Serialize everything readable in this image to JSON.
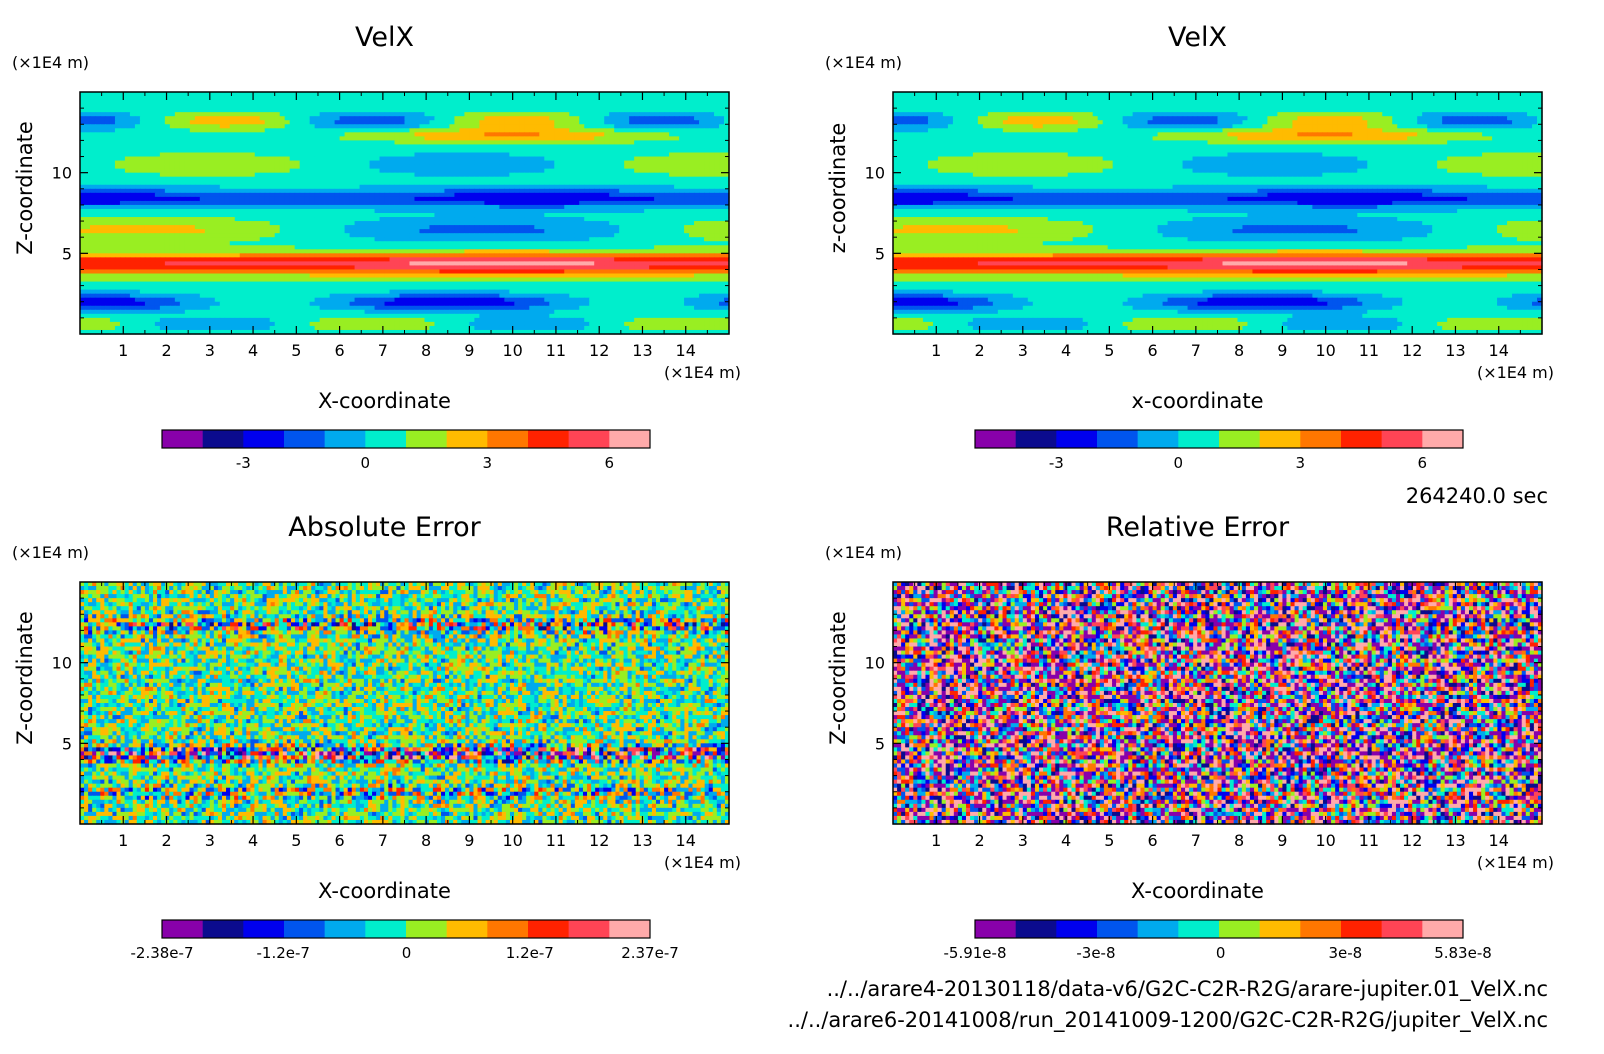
{
  "time_label": "264240.0 sec",
  "file_paths": [
    "../../arare4-20130118/data-v6/G2C-C2R-R2G/arare-jupiter.01_VelX.nc",
    "../../arare6-20141008/run_20141009-1200/G2C-C2R-R2G/jupiter_VelX.nc"
  ],
  "colormap": [
    "#8800aa",
    "#0b0b8e",
    "#0000ee",
    "#0055ee",
    "#00aaee",
    "#00eecc",
    "#99ee22",
    "#ffbb00",
    "#ff7700",
    "#ff2200",
    "#ff4455",
    "#ffaaaa"
  ],
  "chart_data": [
    {
      "type": "heatmap",
      "title": "VelX",
      "xlabel": "X-coordinate",
      "ylabel": "Z-coordinate",
      "x_unit": "(×1E4 m)",
      "y_unit": "(×1E4 m)",
      "xlim": [
        0,
        15
      ],
      "ylim": [
        0,
        15
      ],
      "x_ticks": [
        1,
        2,
        3,
        4,
        5,
        6,
        7,
        8,
        9,
        10,
        11,
        12,
        13,
        14
      ],
      "y_ticks": [
        5,
        10
      ],
      "field": "smooth",
      "colorbar": {
        "min": -5,
        "max": 7,
        "tick_values": [
          -3,
          0,
          3,
          6
        ],
        "tick_labels": [
          "-3",
          "0",
          "3",
          "6"
        ]
      }
    },
    {
      "type": "heatmap",
      "title": "VelX",
      "xlabel": "x-coordinate",
      "ylabel": "z-coordinate",
      "x_unit": "(×1E4 m)",
      "y_unit": "(×1E4 m)",
      "xlim": [
        0,
        15
      ],
      "ylim": [
        0,
        15
      ],
      "x_ticks": [
        1,
        2,
        3,
        4,
        5,
        6,
        7,
        8,
        9,
        10,
        11,
        12,
        13,
        14
      ],
      "y_ticks": [
        5,
        10
      ],
      "field": "smooth",
      "colorbar": {
        "min": -5,
        "max": 7,
        "tick_values": [
          -3,
          0,
          3,
          6
        ],
        "tick_labels": [
          "-3",
          "0",
          "3",
          "6"
        ]
      }
    },
    {
      "type": "heatmap",
      "title": "Absolute Error",
      "xlabel": "X-coordinate",
      "ylabel": "Z-coordinate",
      "x_unit": "(×1E4 m)",
      "y_unit": "(×1E4 m)",
      "xlim": [
        0,
        15
      ],
      "ylim": [
        0,
        15
      ],
      "x_ticks": [
        1,
        2,
        3,
        4,
        5,
        6,
        7,
        8,
        9,
        10,
        11,
        12,
        13,
        14
      ],
      "y_ticks": [
        5,
        10
      ],
      "field": "noise_banded",
      "colorbar": {
        "min": -2.38e-07,
        "max": 2.37e-07,
        "tick_values": [
          -2.38e-07,
          -1.2e-07,
          0,
          1.2e-07,
          2.37e-07
        ],
        "tick_labels": [
          "-2.38e-7",
          "-1.2e-7",
          "0",
          "1.2e-7",
          "2.37e-7"
        ]
      }
    },
    {
      "type": "heatmap",
      "title": "Relative Error",
      "xlabel": "X-coordinate",
      "ylabel": "Z-coordinate",
      "x_unit": "(×1E4 m)",
      "y_unit": "(×1E4 m)",
      "xlim": [
        0,
        15
      ],
      "ylim": [
        0,
        15
      ],
      "x_ticks": [
        1,
        2,
        3,
        4,
        5,
        6,
        7,
        8,
        9,
        10,
        11,
        12,
        13,
        14
      ],
      "y_ticks": [
        5,
        10
      ],
      "field": "noise",
      "colorbar": {
        "min": -5.91e-08,
        "max": 5.83e-08,
        "tick_values": [
          -5.91e-08,
          -3e-08,
          0,
          3e-08,
          5.83e-08
        ],
        "tick_labels": [
          "-5.91e-8",
          "-3e-8",
          "0",
          "3e-8",
          "5.83e-8"
        ]
      }
    }
  ]
}
